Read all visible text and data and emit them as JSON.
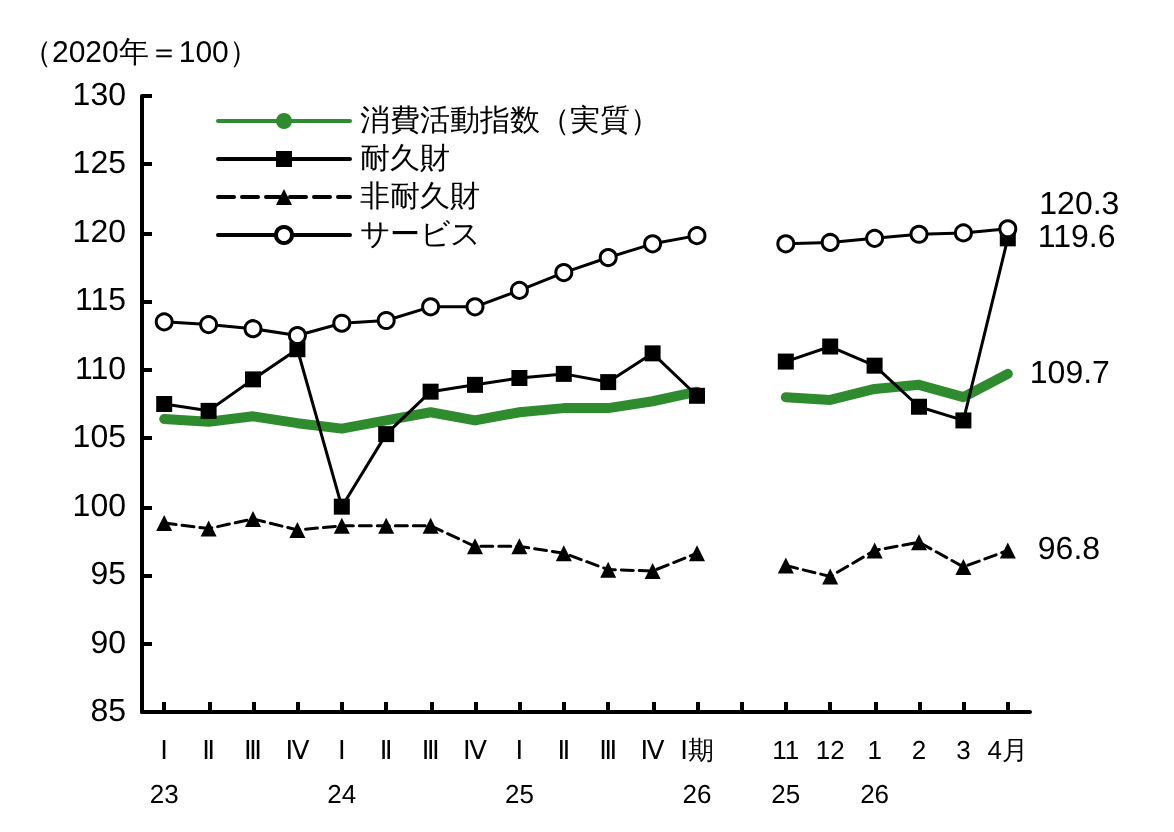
{
  "chart_data": {
    "type": "line",
    "ylabel": "（2020年＝100）",
    "categories": [
      "Ⅰ\n23",
      "Ⅱ",
      "Ⅲ",
      "Ⅳ",
      "Ⅰ\n24",
      "Ⅱ",
      "Ⅲ",
      "Ⅳ",
      "Ⅰ\n25",
      "Ⅱ",
      "Ⅲ",
      "Ⅳ",
      "Ⅰ期\n26",
      null,
      "11\n25",
      "12",
      "1\n26",
      "2",
      "3",
      "4月"
    ],
    "series": [
      {
        "name": "消費活動指数（実質）",
        "color": "#2e8b2e",
        "marker": "none",
        "line_style": "solid",
        "values": [
          106.4,
          106.2,
          106.6,
          106.1,
          105.7,
          106.3,
          106.9,
          106.3,
          106.9,
          107.2,
          107.2,
          107.7,
          108.4,
          null,
          108.0,
          107.8,
          108.6,
          108.9,
          108.0,
          109.7
        ],
        "value_labels": [
          null,
          null,
          null,
          null,
          null,
          null,
          null,
          null,
          null,
          null,
          null,
          null,
          null,
          null,
          null,
          null,
          null,
          null,
          null,
          "109.7"
        ]
      },
      {
        "name": "耐久財",
        "color": "#000000",
        "marker": "square",
        "line_style": "solid",
        "values": [
          107.5,
          107.0,
          109.3,
          111.5,
          100.0,
          105.3,
          108.4,
          108.9,
          109.4,
          109.7,
          109.1,
          111.2,
          108.1,
          null,
          110.6,
          111.7,
          110.3,
          107.3,
          106.3,
          119.6
        ],
        "value_labels": [
          null,
          null,
          null,
          null,
          null,
          null,
          null,
          null,
          null,
          null,
          null,
          null,
          null,
          null,
          null,
          null,
          null,
          null,
          null,
          "119.6"
        ]
      },
      {
        "name": "非耐久財",
        "color": "#000000",
        "marker": "triangle",
        "line_style": "dashed",
        "values": [
          98.8,
          98.4,
          99.1,
          98.3,
          98.6,
          98.6,
          98.6,
          97.1,
          97.1,
          96.6,
          95.4,
          95.3,
          96.6,
          null,
          95.7,
          94.9,
          96.8,
          97.4,
          95.6,
          96.8
        ],
        "value_labels": [
          null,
          null,
          null,
          null,
          null,
          null,
          null,
          null,
          null,
          null,
          null,
          null,
          null,
          null,
          null,
          null,
          null,
          null,
          null,
          "96.8"
        ]
      },
      {
        "name": "サービス",
        "color": "#000000",
        "marker": "circle",
        "line_style": "solid",
        "values": [
          113.5,
          113.3,
          113.0,
          112.5,
          113.4,
          113.6,
          114.6,
          114.6,
          115.8,
          117.1,
          118.2,
          119.2,
          119.8,
          null,
          119.2,
          119.3,
          119.6,
          119.9,
          120.0,
          120.3
        ],
        "value_labels": [
          null,
          null,
          null,
          null,
          null,
          null,
          null,
          null,
          null,
          null,
          null,
          null,
          null,
          null,
          null,
          null,
          null,
          null,
          null,
          "120.3"
        ]
      }
    ],
    "ylim": [
      85,
      130
    ],
    "yticks": [
      85,
      90,
      95,
      100,
      105,
      110,
      115,
      120,
      125,
      130
    ],
    "grid": false,
    "legend": "top left"
  }
}
